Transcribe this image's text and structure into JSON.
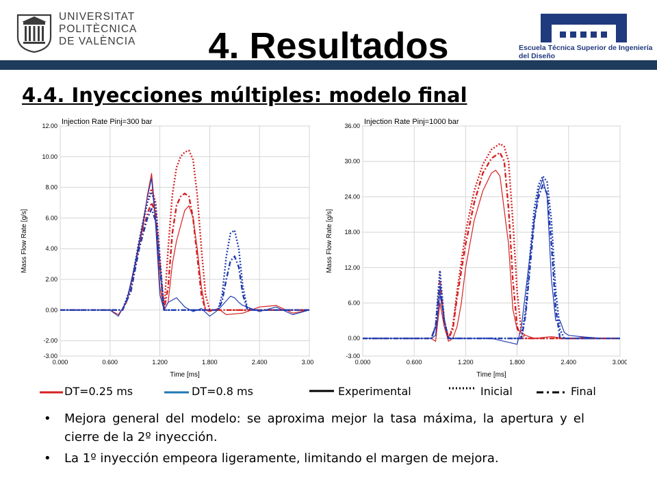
{
  "header": {
    "university_lines": [
      "UNIVERSITAT",
      "POLITÈCNICA",
      "DE VALÈNCIA"
    ],
    "school_name": "Escuela Técnica Superior de Ingeniería del Diseño",
    "title": "4. Resultados",
    "subtitle": "4.4. Inyecciones múltiples: modelo final",
    "bar_color": "#1f3b5c",
    "school_color": "#203a7e"
  },
  "chart_data": [
    {
      "type": "line",
      "title": "Injection Rate Pinj=300 bar",
      "xlabel": "Time [ms]",
      "ylabel": "Mass Flow Rate [g/s]",
      "xlim": [
        0,
        3.0
      ],
      "ylim": [
        -3.0,
        12.0
      ],
      "xticks": [
        "0.000",
        "0.600",
        "1.200",
        "1.800",
        "2.400",
        "3.000"
      ],
      "yticks": [
        "-3.00",
        "-2.00",
        "0.00",
        "2.00",
        "4.00",
        "6.00",
        "8.00",
        "10.00",
        "12.00"
      ],
      "grid": true,
      "series": [
        {
          "color": "#d42020",
          "style": "solid",
          "x": [
            0,
            0.6,
            0.7,
            0.8,
            0.9,
            1.0,
            1.05,
            1.1,
            1.15,
            1.2,
            1.25,
            1.3,
            1.35,
            1.4,
            1.45,
            1.5,
            1.55,
            1.6,
            1.65,
            1.7,
            1.75,
            1.8,
            1.9,
            2.0,
            2.2,
            2.4,
            2.6,
            2.8,
            3.0
          ],
          "y": [
            0,
            0,
            -0.3,
            0.5,
            2.8,
            5.5,
            7.5,
            8.9,
            6.0,
            1.5,
            0,
            0.5,
            3.0,
            4.5,
            5.5,
            6.5,
            6.8,
            6.0,
            4.0,
            1.5,
            0,
            -0.1,
            0.1,
            -0.3,
            -0.2,
            0.2,
            0.3,
            -0.2,
            0
          ]
        },
        {
          "color": "#1f3bb0",
          "style": "solid",
          "x": [
            0,
            0.6,
            0.7,
            0.8,
            0.9,
            1.0,
            1.05,
            1.1,
            1.15,
            1.2,
            1.25,
            1.3,
            1.4,
            1.5,
            1.6,
            1.7,
            1.8,
            1.9,
            2.0,
            2.05,
            2.1,
            2.15,
            2.2,
            2.3,
            2.4,
            2.6,
            2.8,
            3.0
          ],
          "y": [
            0,
            0,
            -0.4,
            0.6,
            3.0,
            5.8,
            7.4,
            8.6,
            5.5,
            1.0,
            0,
            0.5,
            0.8,
            0.2,
            -0.1,
            0.1,
            -0.4,
            0.0,
            0.6,
            0.9,
            0.8,
            0.5,
            0.3,
            0.1,
            -0.1,
            0.2,
            -0.3,
            0
          ]
        },
        {
          "color": "#d42020",
          "style": "dotted",
          "x": [
            0,
            0.75,
            0.85,
            0.95,
            1.05,
            1.1,
            1.15,
            1.2,
            1.25,
            1.3,
            1.35,
            1.4,
            1.45,
            1.5,
            1.55,
            1.6,
            1.65,
            1.7,
            1.75,
            1.8,
            3.0
          ],
          "y": [
            0,
            0,
            1.5,
            4.5,
            7.2,
            7.9,
            7.0,
            3.5,
            0,
            4.0,
            7.5,
            9.3,
            10.0,
            10.3,
            10.4,
            9.8,
            7.5,
            4.0,
            1.0,
            0,
            0
          ]
        },
        {
          "color": "#d42020",
          "style": "dashdot",
          "x": [
            0,
            0.75,
            0.85,
            0.95,
            1.05,
            1.1,
            1.15,
            1.2,
            1.25,
            1.3,
            1.35,
            1.4,
            1.45,
            1.5,
            1.55,
            1.6,
            1.65,
            1.7,
            1.75,
            3.0
          ],
          "y": [
            0,
            0,
            1.2,
            4.0,
            6.3,
            7.0,
            6.3,
            3.0,
            0,
            1.5,
            5.0,
            6.8,
            7.4,
            7.6,
            7.4,
            6.0,
            3.5,
            1.0,
            0,
            0
          ]
        },
        {
          "color": "#1f3bb0",
          "style": "dotted",
          "x": [
            0,
            0.75,
            0.85,
            0.95,
            1.05,
            1.1,
            1.15,
            1.2,
            1.25,
            1.3,
            1.9,
            1.95,
            2.0,
            2.05,
            2.1,
            2.15,
            2.2,
            2.25,
            2.3,
            3.0
          ],
          "y": [
            0,
            0,
            1.5,
            4.5,
            7.0,
            7.7,
            6.8,
            3.2,
            0,
            0,
            0,
            1.0,
            3.5,
            5.0,
            5.2,
            4.0,
            1.5,
            0.2,
            0,
            0
          ]
        },
        {
          "color": "#1f3bb0",
          "style": "dashdot",
          "x": [
            0,
            0.75,
            0.85,
            0.95,
            1.05,
            1.1,
            1.15,
            1.2,
            1.25,
            1.3,
            1.9,
            1.95,
            2.0,
            2.05,
            2.1,
            2.15,
            2.2,
            2.25,
            2.3,
            3.0
          ],
          "y": [
            0,
            0,
            1.2,
            4.0,
            6.0,
            6.6,
            5.8,
            2.8,
            0,
            0,
            0,
            0.6,
            2.0,
            3.2,
            3.5,
            2.8,
            1.0,
            0.1,
            0,
            0
          ]
        }
      ]
    },
    {
      "type": "line",
      "title": "Injection Rate Pinj=1000 bar",
      "xlabel": "Time [ms]",
      "ylabel": "Mass Flow Rate [g/s]",
      "xlim": [
        0,
        3.0
      ],
      "ylim": [
        -3.0,
        36.0
      ],
      "xticks": [
        "0.000",
        "0.600",
        "1.200",
        "1.800",
        "2.400",
        "3.000"
      ],
      "yticks": [
        "-3.00",
        "0.00",
        "6.00",
        "12.00",
        "18.00",
        "24.00",
        "30.00",
        "36.00"
      ],
      "grid": true,
      "series": [
        {
          "color": "#d42020",
          "style": "solid",
          "x": [
            0,
            0.8,
            0.85,
            0.9,
            0.95,
            1.0,
            1.05,
            1.1,
            1.15,
            1.2,
            1.3,
            1.4,
            1.5,
            1.55,
            1.6,
            1.7,
            1.75,
            1.8,
            1.9,
            2.0,
            2.2,
            2.4,
            2.6,
            2.8,
            3.0
          ],
          "y": [
            0,
            0,
            -0.5,
            6.0,
            2.0,
            -0.5,
            0,
            2.0,
            6.0,
            12.0,
            20.0,
            25.0,
            28.0,
            28.5,
            27.5,
            16.0,
            5.0,
            1.5,
            0.5,
            0,
            0.3,
            -0.1,
            0.2,
            0,
            0
          ]
        },
        {
          "color": "#1f3bb0",
          "style": "solid",
          "x": [
            0,
            0.8,
            0.85,
            0.9,
            0.95,
            1.0,
            1.05,
            1.2,
            1.5,
            1.8,
            1.85,
            1.9,
            2.0,
            2.05,
            2.1,
            2.15,
            2.2,
            2.25,
            2.3,
            2.35,
            2.4,
            2.6,
            2.8,
            3.0
          ],
          "y": [
            0,
            0,
            0.5,
            7.5,
            3.0,
            0,
            0,
            0,
            0,
            -1.0,
            2.0,
            8.0,
            20.0,
            25.0,
            27.0,
            24.0,
            10.0,
            3.0,
            3.0,
            1.0,
            0.5,
            0.2,
            0,
            0
          ]
        },
        {
          "color": "#d42020",
          "style": "dotted",
          "x": [
            0,
            0.8,
            0.85,
            0.9,
            0.95,
            1.0,
            1.05,
            1.1,
            1.2,
            1.3,
            1.4,
            1.5,
            1.6,
            1.65,
            1.7,
            1.75,
            1.8,
            1.85,
            1.9,
            3.0
          ],
          "y": [
            0,
            0,
            2.0,
            11.5,
            3.0,
            0,
            2.0,
            8.0,
            18.0,
            25.0,
            29.5,
            32.0,
            33.0,
            32.5,
            30.0,
            20.0,
            8.0,
            1.0,
            0,
            0
          ]
        },
        {
          "color": "#d42020",
          "style": "dashdot",
          "x": [
            0,
            0.8,
            0.85,
            0.9,
            0.95,
            1.0,
            1.05,
            1.1,
            1.2,
            1.3,
            1.4,
            1.5,
            1.6,
            1.65,
            1.7,
            1.75,
            1.8,
            1.85,
            3.0
          ],
          "y": [
            0,
            0,
            2.0,
            9.5,
            3.0,
            0,
            1.5,
            7.0,
            16.0,
            23.0,
            28.0,
            30.5,
            31.5,
            30.0,
            22.0,
            10.0,
            2.0,
            0,
            0
          ]
        },
        {
          "color": "#1f3bb0",
          "style": "dotted",
          "x": [
            0,
            0.8,
            0.85,
            0.9,
            0.95,
            1.0,
            1.05,
            1.85,
            1.9,
            1.95,
            2.0,
            2.05,
            2.1,
            2.15,
            2.2,
            2.25,
            2.3,
            2.35,
            3.0
          ],
          "y": [
            0,
            0,
            2.0,
            11.5,
            3.0,
            0,
            0,
            0,
            5.0,
            14.0,
            22.0,
            26.0,
            27.5,
            26.5,
            20.0,
            8.0,
            1.5,
            0,
            0
          ]
        },
        {
          "color": "#1f3bb0",
          "style": "dashdot",
          "x": [
            0,
            0.8,
            0.85,
            0.9,
            0.95,
            1.0,
            1.05,
            1.85,
            1.9,
            1.95,
            2.0,
            2.05,
            2.1,
            2.15,
            2.2,
            2.25,
            2.3,
            3.0
          ],
          "y": [
            0,
            0,
            2.0,
            9.0,
            3.0,
            0,
            0,
            0,
            4.0,
            12.0,
            20.0,
            24.0,
            26.0,
            24.5,
            16.0,
            5.0,
            0,
            0
          ]
        }
      ]
    }
  ],
  "legend": [
    {
      "label": "DT=0.25 ms",
      "color": "#d42020",
      "style": "solid"
    },
    {
      "label": "DT=0.8 ms",
      "color": "#1f77b4",
      "style": "solid"
    },
    {
      "label": "Experimental",
      "color": "#000000",
      "style": "solid"
    },
    {
      "label": "Inicial",
      "color": "#000000",
      "style": "dotted"
    },
    {
      "label": "Final",
      "color": "#000000",
      "style": "dashdot"
    }
  ],
  "bullets": [
    "Mejora general del modelo: se aproxima mejor la tasa máxima, la apertura y el cierre de la 2º inyección.",
    "La 1º inyección empeora ligeramente, limitando el margen de mejora."
  ]
}
